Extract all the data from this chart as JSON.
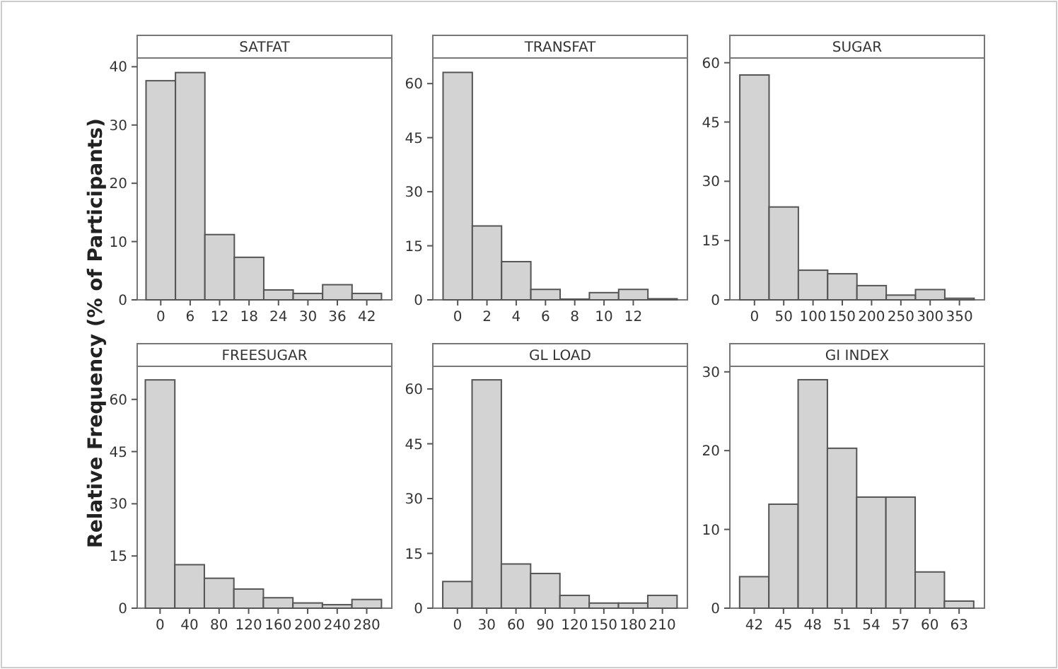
{
  "chart_data": [
    {
      "type": "histogram",
      "title": "SATFAT",
      "ylabel": "Relative Frequency (% of Participants)",
      "bins": [
        -3,
        3,
        9,
        15,
        21,
        27,
        33,
        39,
        45
      ],
      "values": [
        37.6,
        39,
        11.2,
        7.3,
        1.7,
        1.1,
        2.6,
        1.1
      ],
      "color": "#d3d3d3",
      "xlim": [
        -4.8,
        47.1
      ],
      "xticks": [
        0,
        6,
        12,
        18,
        24,
        30,
        36,
        42
      ],
      "ylim": [
        0,
        41.5
      ],
      "yticks": [
        0,
        10,
        20,
        30,
        40
      ]
    },
    {
      "type": "histogram",
      "title": "TRANSFAT",
      "bins": [
        -1,
        1,
        3,
        5,
        7,
        9,
        11,
        13,
        15
      ],
      "values": [
        63.1,
        20.5,
        10.6,
        2.9,
        0.2,
        2,
        2.9,
        0.3
      ],
      "color": "#d3d3d3",
      "xlim": [
        -1.7,
        15.7
      ],
      "xticks": [
        0,
        2,
        4,
        6,
        8,
        10,
        12
      ],
      "ylim": [
        0,
        67.1
      ],
      "yticks": [
        0,
        15,
        30,
        45,
        60
      ]
    },
    {
      "type": "histogram",
      "title": "SUGAR",
      "bins": [
        -25,
        25,
        75,
        125,
        175,
        225,
        275,
        325,
        375
      ],
      "values": [
        56.9,
        23.5,
        7.5,
        6.6,
        3.6,
        1.2,
        2.6,
        0.4
      ],
      "color": "#d3d3d3",
      "xlim": [
        -42,
        392.7
      ],
      "xticks": [
        0,
        50,
        100,
        150,
        200,
        250,
        300,
        350
      ],
      "ylim": [
        0,
        61.2
      ],
      "yticks": [
        0,
        15,
        30,
        45,
        60
      ]
    },
    {
      "type": "histogram",
      "title": "FREESUGAR",
      "bins": [
        -20,
        20,
        60,
        100,
        140,
        180,
        220,
        260,
        300
      ],
      "values": [
        65.6,
        12.5,
        8.6,
        5.5,
        3,
        1.5,
        1,
        2.5
      ],
      "color": "#d3d3d3",
      "xlim": [
        -31,
        314
      ],
      "xticks": [
        0,
        40,
        80,
        120,
        160,
        200,
        240,
        280
      ],
      "ylim": [
        0,
        69.5
      ],
      "yticks": [
        0,
        15,
        30,
        45,
        60
      ]
    },
    {
      "type": "histogram",
      "title": "GL LOAD",
      "bins": [
        -15,
        15,
        45,
        75,
        105,
        135,
        165,
        195,
        225
      ],
      "values": [
        7.3,
        62.5,
        12.1,
        9.5,
        3.5,
        1.4,
        1.4,
        3.5
      ],
      "color": "#d3d3d3",
      "xlim": [
        -25.2,
        235.6
      ],
      "xticks": [
        0,
        30,
        60,
        90,
        120,
        150,
        180,
        210
      ],
      "ylim": [
        0,
        66.2
      ],
      "yticks": [
        0,
        15,
        30,
        45,
        60
      ]
    },
    {
      "type": "histogram",
      "title": "GI INDEX",
      "bins": [
        40.5,
        43.5,
        46.5,
        49.5,
        52.5,
        55.5,
        58.5,
        61.5,
        64.5
      ],
      "values": [
        4,
        13.2,
        29,
        20.3,
        14.1,
        14.1,
        4.6,
        0.9
      ],
      "color": "#d3d3d3",
      "xlim": [
        39.5,
        65.6
      ],
      "xticks": [
        42,
        45,
        48,
        51,
        54,
        57,
        60,
        63
      ],
      "ylim": [
        0,
        30.7
      ],
      "yticks": [
        0,
        10,
        20,
        30
      ]
    }
  ]
}
